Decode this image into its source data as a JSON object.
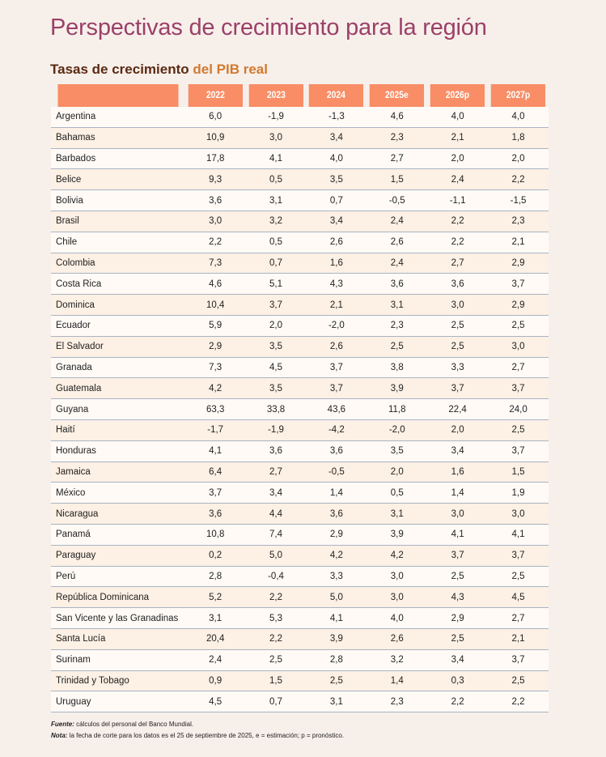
{
  "title": "Perspectivas de crecimiento para la región",
  "subtitle_part1": "Tasas de crecimiento ",
  "subtitle_part2": "del PIB real",
  "colors": {
    "header": "#f88d66",
    "title": "#9b4068",
    "accent": "#d07a30"
  },
  "columns": [
    "",
    "2022",
    "2023",
    "2024",
    "2025e",
    "2026p",
    "2027p"
  ],
  "rows": [
    [
      "Argentina",
      "6,0",
      "-1,9",
      "-1,3",
      "4,6",
      "4,0",
      "4,0"
    ],
    [
      "Bahamas",
      "10,9",
      "3,0",
      "3,4",
      "2,3",
      "2,1",
      "1,8"
    ],
    [
      "Barbados",
      "17,8",
      "4,1",
      "4,0",
      "2,7",
      "2,0",
      "2,0"
    ],
    [
      "Belice",
      "9,3",
      "0,5",
      "3,5",
      "1,5",
      "2,4",
      "2,2"
    ],
    [
      "Bolivia",
      "3,6",
      "3,1",
      "0,7",
      "-0,5",
      "-1,1",
      "-1,5"
    ],
    [
      "Brasil",
      "3,0",
      "3,2",
      "3,4",
      "2,4",
      "2,2",
      "2,3"
    ],
    [
      "Chile",
      "2,2",
      "0,5",
      "2,6",
      "2,6",
      "2,2",
      "2,1"
    ],
    [
      "Colombia",
      "7,3",
      "0,7",
      "1,6",
      "2,4",
      "2,7",
      "2,9"
    ],
    [
      "Costa Rica",
      "4,6",
      "5,1",
      "4,3",
      "3,6",
      "3,6",
      "3,7"
    ],
    [
      "Dominica",
      "10,4",
      "3,7",
      "2,1",
      "3,1",
      "3,0",
      "2,9"
    ],
    [
      "Ecuador",
      "5,9",
      "2,0",
      "-2,0",
      "2,3",
      "2,5",
      "2,5"
    ],
    [
      "El Salvador",
      "2,9",
      "3,5",
      "2,6",
      "2,5",
      "2,5",
      "3,0"
    ],
    [
      "Granada",
      "7,3",
      "4,5",
      "3,7",
      "3,8",
      "3,3",
      "2,7"
    ],
    [
      "Guatemala",
      "4,2",
      "3,5",
      "3,7",
      "3,9",
      "3,7",
      "3,7"
    ],
    [
      "Guyana",
      "63,3",
      "33,8",
      "43,6",
      "11,8",
      "22,4",
      "24,0"
    ],
    [
      "Haití",
      "-1,7",
      "-1,9",
      "-4,2",
      "-2,0",
      "2,0",
      "2,5"
    ],
    [
      "Honduras",
      "4,1",
      "3,6",
      "3,6",
      "3,5",
      "3,4",
      "3,7"
    ],
    [
      "Jamaica",
      "6,4",
      "2,7",
      "-0,5",
      "2,0",
      "1,6",
      "1,5"
    ],
    [
      "México",
      "3,7",
      "3,4",
      "1,4",
      "0,5",
      "1,4",
      "1,9"
    ],
    [
      "Nicaragua",
      "3,6",
      "4,4",
      "3,6",
      "3,1",
      "3,0",
      "3,0"
    ],
    [
      "Panamá",
      "10,8",
      "7,4",
      "2,9",
      "3,9",
      "4,1",
      "4,1"
    ],
    [
      "Paraguay",
      "0,2",
      "5,0",
      "4,2",
      "4,2",
      "3,7",
      "3,7"
    ],
    [
      "Perú",
      "2,8",
      "-0,4",
      "3,3",
      "3,0",
      "2,5",
      "2,5"
    ],
    [
      "República Dominicana",
      "5,2",
      "2,2",
      "5,0",
      "3,0",
      "4,3",
      "4,5"
    ],
    [
      "San Vicente y las Granadinas",
      "3,1",
      "5,3",
      "4,1",
      "4,0",
      "2,9",
      "2,7"
    ],
    [
      "Santa Lucía",
      "20,4",
      "2,2",
      "3,9",
      "2,6",
      "2,5",
      "2,1"
    ],
    [
      "Surinam",
      "2,4",
      "2,5",
      "2,8",
      "3,2",
      "3,4",
      "3,7"
    ],
    [
      "Trinidad y Tobago",
      "0,9",
      "1,5",
      "2,5",
      "1,4",
      "0,3",
      "2,5"
    ],
    [
      "Uruguay",
      "4,5",
      "0,7",
      "3,1",
      "2,3",
      "2,2",
      "2,2"
    ]
  ],
  "notes": {
    "source_label": "Fuente:",
    "source_text": " cálculos del personal del Banco Mundial.",
    "note_label": "Nota:",
    "note_text": " la fecha de corte para los datos es el 25 de septiembre de 2025, e = estimación; p = pronóstico."
  }
}
